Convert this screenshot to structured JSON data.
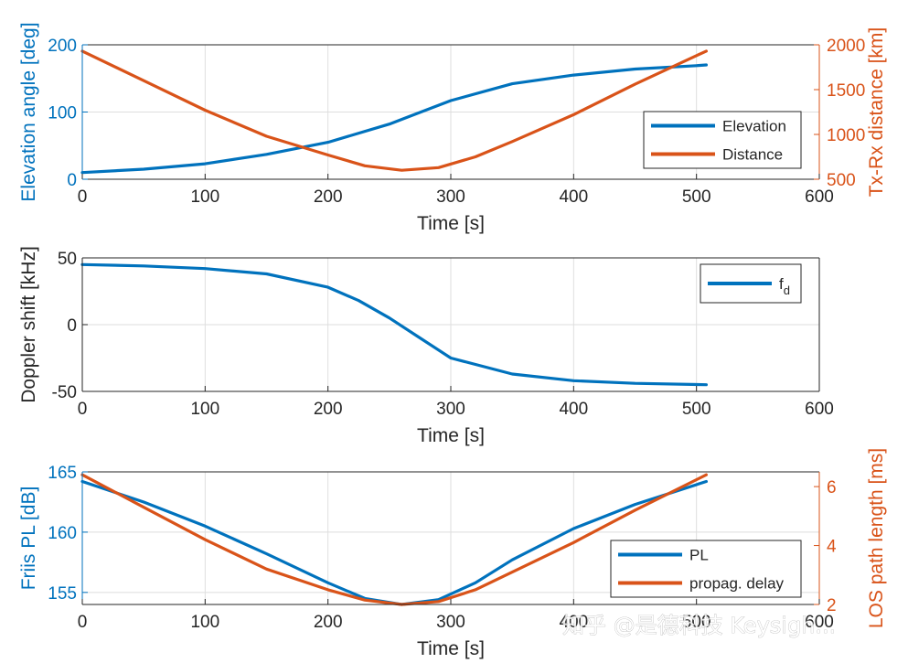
{
  "colors": {
    "blue": "#0072BD",
    "orange": "#D95319",
    "axis": "#262626",
    "grid": "#dedede"
  },
  "watermark": "知乎 @是德科技 Keysigh...",
  "chart_data": [
    {
      "type": "line",
      "xlabel": "Time [s]",
      "ylabel": "Elevation angle [deg]",
      "ylabel_right": "Tx-Rx distance [km]",
      "xlim": [
        0,
        600
      ],
      "ylim": [
        0,
        200
      ],
      "ylim_right": [
        500,
        2000
      ],
      "xticks": [
        "0",
        "100",
        "200",
        "300",
        "400",
        "500",
        "600"
      ],
      "yticks": [
        "0",
        "100",
        "200"
      ],
      "yticks_right": [
        "500",
        "1000",
        "1500",
        "2000"
      ],
      "grid": true,
      "legend": "right",
      "series": [
        {
          "name": "Elevation",
          "axis": "left",
          "x": [
            0,
            50,
            100,
            150,
            200,
            250,
            300,
            350,
            400,
            450,
            500,
            508
          ],
          "y": [
            10,
            15,
            23,
            37,
            55,
            82,
            117,
            142,
            155,
            164,
            169,
            170
          ]
        },
        {
          "name": "Distance",
          "axis": "right",
          "x": [
            0,
            50,
            100,
            150,
            200,
            230,
            260,
            290,
            320,
            350,
            400,
            450,
            500,
            508
          ],
          "y": [
            1930,
            1600,
            1270,
            980,
            770,
            650,
            600,
            630,
            750,
            920,
            1220,
            1560,
            1880,
            1930
          ]
        }
      ]
    },
    {
      "type": "line",
      "xlabel": "Time [s]",
      "ylabel": "Doppler shift [kHz]",
      "xlim": [
        0,
        600
      ],
      "ylim": [
        -50,
        50
      ],
      "xticks": [
        "0",
        "100",
        "200",
        "300",
        "400",
        "500",
        "600"
      ],
      "yticks": [
        "-50",
        "0",
        "50"
      ],
      "grid": true,
      "legend": "top-right",
      "series": [
        {
          "name": "f",
          "name_sub": "d",
          "axis": "left",
          "x": [
            0,
            50,
            100,
            150,
            200,
            225,
            250,
            275,
            300,
            350,
            400,
            450,
            508
          ],
          "y": [
            45,
            44,
            42,
            38,
            28,
            18,
            5,
            -10,
            -25,
            -37,
            -42,
            -44,
            -45
          ]
        }
      ]
    },
    {
      "type": "line",
      "xlabel": "Time [s]",
      "ylabel": "Friis PL [dB]",
      "ylabel_right": "LOS path length [ms]",
      "xlim": [
        0,
        600
      ],
      "ylim": [
        154,
        165
      ],
      "ylim_right": [
        2,
        6.5
      ],
      "xticks": [
        "0",
        "100",
        "200",
        "300",
        "400",
        "500",
        "600"
      ],
      "yticks": [
        "155",
        "160",
        "165"
      ],
      "yticks_right": [
        "2",
        "4",
        "6"
      ],
      "grid": true,
      "legend": "bottom-right",
      "series": [
        {
          "name": "PL",
          "axis": "left",
          "x": [
            0,
            50,
            100,
            150,
            200,
            230,
            260,
            290,
            320,
            350,
            400,
            450,
            508
          ],
          "y": [
            164.2,
            162.5,
            160.5,
            158.2,
            155.8,
            154.5,
            154.0,
            154.4,
            155.8,
            157.7,
            160.3,
            162.3,
            164.2
          ]
        },
        {
          "name": "propag. delay",
          "axis": "right",
          "x": [
            0,
            50,
            100,
            150,
            200,
            230,
            260,
            290,
            320,
            350,
            400,
            450,
            508
          ],
          "y": [
            6.4,
            5.3,
            4.2,
            3.2,
            2.5,
            2.15,
            2.0,
            2.1,
            2.5,
            3.1,
            4.1,
            5.2,
            6.4
          ]
        }
      ]
    }
  ]
}
